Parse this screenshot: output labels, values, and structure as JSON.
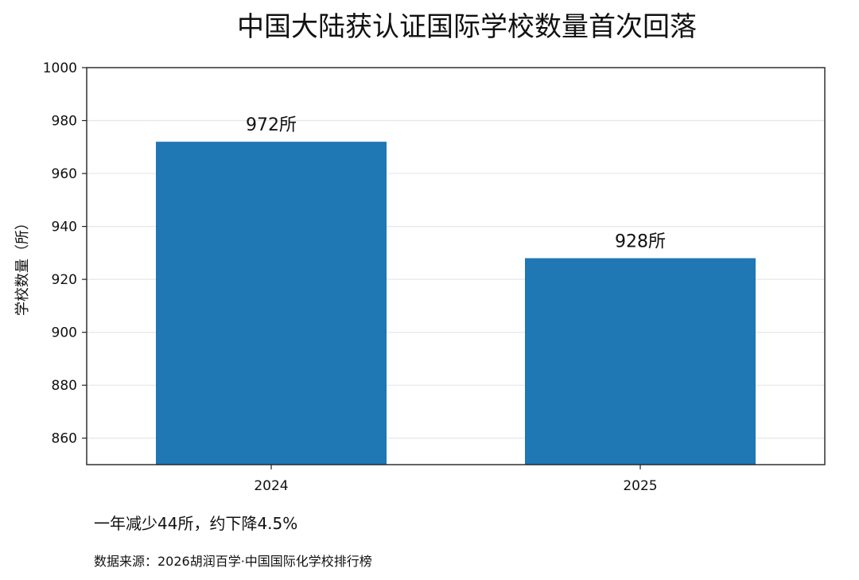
{
  "chart_data": {
    "type": "bar",
    "title": "中国大陆获认证国际学校数量首次回落",
    "xlabel": "",
    "ylabel": "学校数量（所）",
    "categories": [
      "2024",
      "2025"
    ],
    "values": [
      972,
      928
    ],
    "data_labels": [
      "972所",
      "928所"
    ],
    "ylim": [
      850,
      1000
    ],
    "yticks": [
      860,
      880,
      900,
      920,
      940,
      960,
      980,
      1000
    ],
    "grid": "horizontal",
    "bar_color": "#1f77b4"
  },
  "note": "一年减少44所，约下降4.5%",
  "source": "数据来源：2026胡润百学·中国国际化学校排行榜"
}
